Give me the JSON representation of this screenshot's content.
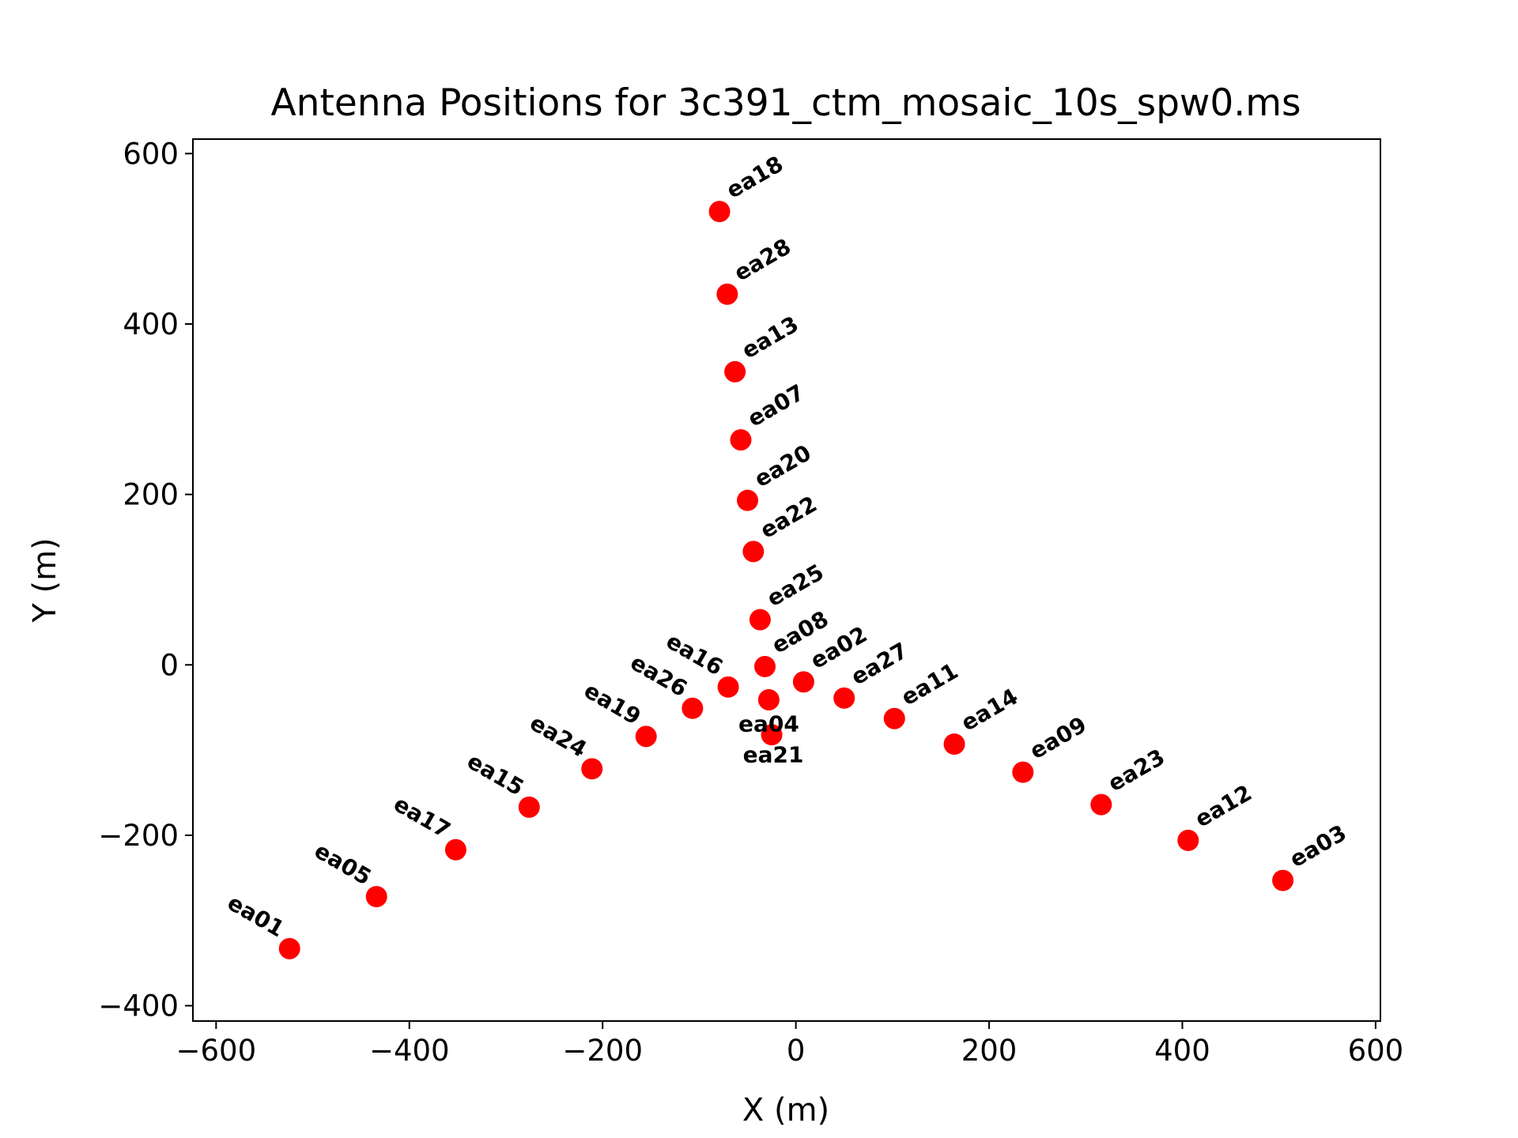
{
  "chart_data": {
    "type": "scatter",
    "title": "Antenna Positions for 3c391_ctm_mosaic_10s_spw0.ms",
    "xlabel": "X (m)",
    "ylabel": "Y (m)",
    "xlim": [
      -624,
      605
    ],
    "ylim": [
      -418,
      617
    ],
    "xticks": [
      -600,
      -400,
      -200,
      0,
      200,
      400,
      600
    ],
    "yticks": [
      -400,
      -200,
      0,
      200,
      400,
      600
    ],
    "xtick_labels": [
      "−600",
      "−400",
      "−200",
      "0",
      "200",
      "400",
      "600"
    ],
    "ytick_labels": [
      "−400",
      "−200",
      "0",
      "200",
      "400",
      "600"
    ],
    "grid": false,
    "marker_color": "#ff0000",
    "points": [
      {
        "name": "ea18",
        "x": -79,
        "y": 532
      },
      {
        "name": "ea28",
        "x": -71,
        "y": 435
      },
      {
        "name": "ea13",
        "x": -63,
        "y": 344
      },
      {
        "name": "ea07",
        "x": -57,
        "y": 264
      },
      {
        "name": "ea20",
        "x": -50,
        "y": 193
      },
      {
        "name": "ea22",
        "x": -44,
        "y": 133
      },
      {
        "name": "ea25",
        "x": -37,
        "y": 53
      },
      {
        "name": "ea08",
        "x": -32,
        "y": -2
      },
      {
        "name": "ea02",
        "x": 8,
        "y": -20
      },
      {
        "name": "ea27",
        "x": 50,
        "y": -39
      },
      {
        "name": "ea04",
        "x": -28,
        "y": -41
      },
      {
        "name": "ea21",
        "x": -25,
        "y": -82
      },
      {
        "name": "ea16",
        "x": -70,
        "y": -26
      },
      {
        "name": "ea26",
        "x": -107,
        "y": -51
      },
      {
        "name": "ea19",
        "x": -155,
        "y": -84
      },
      {
        "name": "ea24",
        "x": -211,
        "y": -122
      },
      {
        "name": "ea15",
        "x": -276,
        "y": -167
      },
      {
        "name": "ea17",
        "x": -352,
        "y": -217
      },
      {
        "name": "ea05",
        "x": -434,
        "y": -272
      },
      {
        "name": "ea01",
        "x": -524,
        "y": -333
      },
      {
        "name": "ea11",
        "x": 102,
        "y": -63
      },
      {
        "name": "ea14",
        "x": 164,
        "y": -93
      },
      {
        "name": "ea09",
        "x": 235,
        "y": -126
      },
      {
        "name": "ea23",
        "x": 316,
        "y": -164
      },
      {
        "name": "ea12",
        "x": 406,
        "y": -206
      },
      {
        "name": "ea03",
        "x": 504,
        "y": -253
      }
    ]
  }
}
